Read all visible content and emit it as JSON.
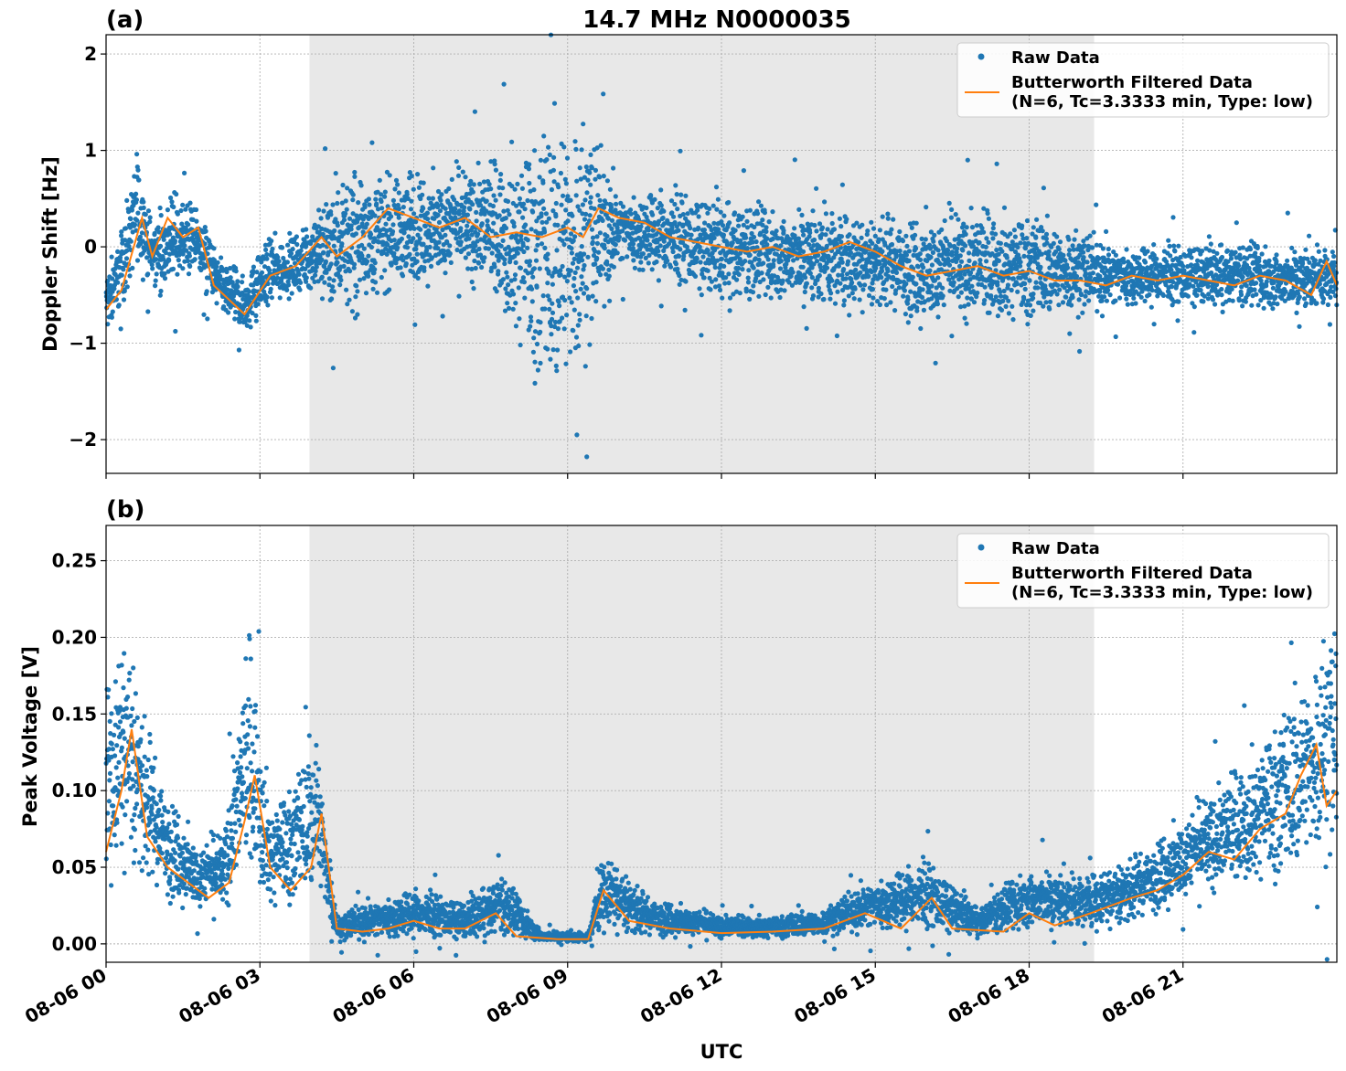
{
  "figure": {
    "title": "14.7 MHz N0000035",
    "xlabel": "UTC"
  },
  "chart_data": [
    {
      "type": "scatter",
      "panel_label": "(a)",
      "ylabel": "Doppler Shift [Hz]",
      "xlim": [
        "2021-08-06 00:00",
        "2021-08-07 00:00"
      ],
      "ylim": [
        -2.35,
        2.2
      ],
      "yticks": [
        2,
        1,
        0,
        -1,
        -2
      ],
      "ytick_labels": [
        "2",
        "1",
        "0",
        "−1",
        "−2"
      ],
      "grid": true,
      "shaded_region": [
        "08-06 03:58",
        "08-06 19:16"
      ],
      "legend": {
        "placement": "top-right",
        "entries": [
          {
            "name": "Raw Data",
            "kind": "marker",
            "color": "#1f77b4"
          },
          {
            "name": "Butterworth Filtered Data",
            "name_line2": "(N=6, Tc=3.3333 min, Type: low)",
            "kind": "line",
            "color": "#ff7f0e"
          }
        ]
      },
      "series": [
        {
          "name": "Raw Data",
          "color": "#1f77b4",
          "envelope": [
            {
              "t": 0.0,
              "lo": -1.0,
              "hi": -0.2
            },
            {
              "t": 0.4,
              "lo": -0.6,
              "hi": 0.5
            },
            {
              "t": 0.6,
              "lo": -0.3,
              "hi": 1.2
            },
            {
              "t": 0.9,
              "lo": -0.5,
              "hi": 0.3
            },
            {
              "t": 1.2,
              "lo": -0.6,
              "hi": 0.7
            },
            {
              "t": 1.8,
              "lo": -0.4,
              "hi": 0.5
            },
            {
              "t": 2.2,
              "lo": -0.8,
              "hi": 0.0
            },
            {
              "t": 2.7,
              "lo": -1.0,
              "hi": -0.2
            },
            {
              "t": 3.2,
              "lo": -0.7,
              "hi": 0.2
            },
            {
              "t": 3.9,
              "lo": -0.5,
              "hi": 0.2
            },
            {
              "t": 4.5,
              "lo": -0.9,
              "hi": 1.0
            },
            {
              "t": 5.5,
              "lo": -0.6,
              "hi": 0.9
            },
            {
              "t": 6.5,
              "lo": -0.5,
              "hi": 0.9
            },
            {
              "t": 7.5,
              "lo": -0.6,
              "hi": 1.0
            },
            {
              "t": 8.5,
              "lo": -1.8,
              "hi": 1.6
            },
            {
              "t": 9.0,
              "lo": -2.0,
              "hi": 2.0
            },
            {
              "t": 9.5,
              "lo": -1.2,
              "hi": 1.5
            },
            {
              "t": 10.0,
              "lo": -0.3,
              "hi": 0.7
            },
            {
              "t": 11.0,
              "lo": -0.5,
              "hi": 0.7
            },
            {
              "t": 12.0,
              "lo": -0.7,
              "hi": 0.6
            },
            {
              "t": 13.0,
              "lo": -0.7,
              "hi": 0.5
            },
            {
              "t": 14.0,
              "lo": -0.8,
              "hi": 0.6
            },
            {
              "t": 15.0,
              "lo": -0.7,
              "hi": 0.4
            },
            {
              "t": 16.0,
              "lo": -1.0,
              "hi": 0.5
            },
            {
              "t": 17.0,
              "lo": -0.9,
              "hi": 0.5
            },
            {
              "t": 18.0,
              "lo": -0.9,
              "hi": 0.5
            },
            {
              "t": 19.0,
              "lo": -0.8,
              "hi": 0.3
            },
            {
              "t": 20.0,
              "lo": -0.7,
              "hi": 0.1
            },
            {
              "t": 21.0,
              "lo": -0.7,
              "hi": 0.1
            },
            {
              "t": 22.0,
              "lo": -0.7,
              "hi": 0.1
            },
            {
              "t": 23.0,
              "lo": -0.8,
              "hi": 0.1
            },
            {
              "t": 24.0,
              "lo": -0.7,
              "hi": 0.1
            }
          ]
        },
        {
          "name": "Butterworth Filtered Data",
          "color": "#ff7f0e",
          "points": [
            {
              "t": 0.0,
              "v": -0.65
            },
            {
              "t": 0.3,
              "v": -0.45
            },
            {
              "t": 0.7,
              "v": 0.3
            },
            {
              "t": 0.9,
              "v": -0.1
            },
            {
              "t": 1.2,
              "v": 0.3
            },
            {
              "t": 1.5,
              "v": 0.1
            },
            {
              "t": 1.8,
              "v": 0.2
            },
            {
              "t": 2.1,
              "v": -0.4
            },
            {
              "t": 2.3,
              "v": -0.5
            },
            {
              "t": 2.7,
              "v": -0.7
            },
            {
              "t": 3.2,
              "v": -0.3
            },
            {
              "t": 3.7,
              "v": -0.2
            },
            {
              "t": 4.2,
              "v": 0.1
            },
            {
              "t": 4.5,
              "v": -0.1
            },
            {
              "t": 5.0,
              "v": 0.1
            },
            {
              "t": 5.5,
              "v": 0.4
            },
            {
              "t": 6.0,
              "v": 0.3
            },
            {
              "t": 6.5,
              "v": 0.2
            },
            {
              "t": 7.0,
              "v": 0.3
            },
            {
              "t": 7.5,
              "v": 0.1
            },
            {
              "t": 8.0,
              "v": 0.15
            },
            {
              "t": 8.5,
              "v": 0.1
            },
            {
              "t": 9.0,
              "v": 0.2
            },
            {
              "t": 9.3,
              "v": 0.1
            },
            {
              "t": 9.6,
              "v": 0.4
            },
            {
              "t": 10.0,
              "v": 0.3
            },
            {
              "t": 10.5,
              "v": 0.25
            },
            {
              "t": 11.0,
              "v": 0.1
            },
            {
              "t": 11.5,
              "v": 0.05
            },
            {
              "t": 12.0,
              "v": 0.0
            },
            {
              "t": 12.5,
              "v": -0.05
            },
            {
              "t": 13.0,
              "v": 0.0
            },
            {
              "t": 13.5,
              "v": -0.1
            },
            {
              "t": 14.0,
              "v": -0.05
            },
            {
              "t": 14.5,
              "v": 0.05
            },
            {
              "t": 15.0,
              "v": -0.05
            },
            {
              "t": 15.5,
              "v": -0.2
            },
            {
              "t": 16.0,
              "v": -0.3
            },
            {
              "t": 16.5,
              "v": -0.25
            },
            {
              "t": 17.0,
              "v": -0.2
            },
            {
              "t": 17.5,
              "v": -0.3
            },
            {
              "t": 18.0,
              "v": -0.25
            },
            {
              "t": 18.5,
              "v": -0.35
            },
            {
              "t": 19.0,
              "v": -0.35
            },
            {
              "t": 19.5,
              "v": -0.4
            },
            {
              "t": 20.0,
              "v": -0.3
            },
            {
              "t": 20.5,
              "v": -0.35
            },
            {
              "t": 21.0,
              "v": -0.3
            },
            {
              "t": 21.5,
              "v": -0.35
            },
            {
              "t": 22.0,
              "v": -0.4
            },
            {
              "t": 22.5,
              "v": -0.3
            },
            {
              "t": 23.0,
              "v": -0.35
            },
            {
              "t": 23.5,
              "v": -0.5
            },
            {
              "t": 23.8,
              "v": -0.15
            },
            {
              "t": 24.0,
              "v": -0.4
            }
          ]
        }
      ]
    },
    {
      "type": "scatter",
      "panel_label": "(b)",
      "ylabel": "Peak Voltage [V]",
      "xlim": [
        "2021-08-06 00:00",
        "2021-08-07 00:00"
      ],
      "ylim": [
        -0.012,
        0.273
      ],
      "yticks": [
        0.0,
        0.05,
        0.1,
        0.15,
        0.2,
        0.25
      ],
      "ytick_labels": [
        "0.00",
        "0.05",
        "0.10",
        "0.15",
        "0.20",
        "0.25"
      ],
      "xticks": [
        0,
        3,
        6,
        9,
        12,
        15,
        18,
        21
      ],
      "xtick_labels": [
        "08-06 00",
        "08-06 03",
        "08-06 06",
        "08-06 09",
        "08-06 12",
        "08-06 15",
        "08-06 18",
        "08-06 21"
      ],
      "grid": true,
      "shaded_region": [
        "08-06 03:58",
        "08-06 19:16"
      ],
      "legend": {
        "placement": "top-right",
        "entries": [
          {
            "name": "Raw Data",
            "kind": "marker",
            "color": "#1f77b4"
          },
          {
            "name": "Butterworth Filtered Data",
            "name_line2": "(N=6, Tc=3.3333 min, Type: low)",
            "kind": "line",
            "color": "#ff7f0e"
          }
        ]
      },
      "series": [
        {
          "name": "Raw Data",
          "color": "#1f77b4",
          "envelope": [
            {
              "t": 0.0,
              "lo": 0.03,
              "hi": 0.19
            },
            {
              "t": 0.4,
              "lo": 0.04,
              "hi": 0.23
            },
            {
              "t": 0.8,
              "lo": 0.03,
              "hi": 0.15
            },
            {
              "t": 1.2,
              "lo": 0.02,
              "hi": 0.11
            },
            {
              "t": 1.8,
              "lo": 0.015,
              "hi": 0.07
            },
            {
              "t": 2.3,
              "lo": 0.015,
              "hi": 0.08
            },
            {
              "t": 2.8,
              "lo": 0.03,
              "hi": 0.22
            },
            {
              "t": 3.2,
              "lo": 0.015,
              "hi": 0.1
            },
            {
              "t": 3.7,
              "lo": 0.02,
              "hi": 0.12
            },
            {
              "t": 4.1,
              "lo": 0.02,
              "hi": 0.16
            },
            {
              "t": 4.5,
              "lo": 0.0,
              "hi": 0.02
            },
            {
              "t": 5.0,
              "lo": 0.0,
              "hi": 0.03
            },
            {
              "t": 6.0,
              "lo": 0.0,
              "hi": 0.04
            },
            {
              "t": 7.0,
              "lo": 0.0,
              "hi": 0.03
            },
            {
              "t": 7.7,
              "lo": 0.0,
              "hi": 0.05
            },
            {
              "t": 8.5,
              "lo": 0.0,
              "hi": 0.01
            },
            {
              "t": 9.4,
              "lo": 0.0,
              "hi": 0.008
            },
            {
              "t": 9.7,
              "lo": 0.005,
              "hi": 0.07
            },
            {
              "t": 10.5,
              "lo": 0.002,
              "hi": 0.035
            },
            {
              "t": 12.0,
              "lo": 0.002,
              "hi": 0.02
            },
            {
              "t": 13.0,
              "lo": 0.002,
              "hi": 0.02
            },
            {
              "t": 14.0,
              "lo": 0.003,
              "hi": 0.025
            },
            {
              "t": 14.8,
              "lo": 0.005,
              "hi": 0.045
            },
            {
              "t": 16.0,
              "lo": 0.003,
              "hi": 0.06
            },
            {
              "t": 17.0,
              "lo": 0.003,
              "hi": 0.025
            },
            {
              "t": 18.0,
              "lo": 0.003,
              "hi": 0.055
            },
            {
              "t": 19.0,
              "lo": 0.005,
              "hi": 0.05
            },
            {
              "t": 20.0,
              "lo": 0.01,
              "hi": 0.06
            },
            {
              "t": 21.0,
              "lo": 0.02,
              "hi": 0.09
            },
            {
              "t": 22.0,
              "lo": 0.03,
              "hi": 0.12
            },
            {
              "t": 23.0,
              "lo": 0.03,
              "hi": 0.17
            },
            {
              "t": 24.0,
              "lo": 0.04,
              "hi": 0.24
            }
          ]
        },
        {
          "name": "Butterworth Filtered Data",
          "color": "#ff7f0e",
          "points": [
            {
              "t": 0.0,
              "v": 0.06
            },
            {
              "t": 0.3,
              "v": 0.1
            },
            {
              "t": 0.5,
              "v": 0.14
            },
            {
              "t": 0.8,
              "v": 0.07
            },
            {
              "t": 1.2,
              "v": 0.05
            },
            {
              "t": 1.6,
              "v": 0.04
            },
            {
              "t": 2.0,
              "v": 0.03
            },
            {
              "t": 2.4,
              "v": 0.04
            },
            {
              "t": 2.7,
              "v": 0.08
            },
            {
              "t": 2.9,
              "v": 0.11
            },
            {
              "t": 3.2,
              "v": 0.05
            },
            {
              "t": 3.6,
              "v": 0.035
            },
            {
              "t": 4.0,
              "v": 0.05
            },
            {
              "t": 4.2,
              "v": 0.085
            },
            {
              "t": 4.5,
              "v": 0.01
            },
            {
              "t": 5.0,
              "v": 0.008
            },
            {
              "t": 5.5,
              "v": 0.01
            },
            {
              "t": 6.0,
              "v": 0.015
            },
            {
              "t": 6.5,
              "v": 0.01
            },
            {
              "t": 7.0,
              "v": 0.01
            },
            {
              "t": 7.6,
              "v": 0.02
            },
            {
              "t": 8.0,
              "v": 0.005
            },
            {
              "t": 8.8,
              "v": 0.003
            },
            {
              "t": 9.4,
              "v": 0.003
            },
            {
              "t": 9.7,
              "v": 0.035
            },
            {
              "t": 10.2,
              "v": 0.015
            },
            {
              "t": 11.0,
              "v": 0.01
            },
            {
              "t": 12.0,
              "v": 0.007
            },
            {
              "t": 13.0,
              "v": 0.008
            },
            {
              "t": 14.0,
              "v": 0.01
            },
            {
              "t": 14.8,
              "v": 0.02
            },
            {
              "t": 15.5,
              "v": 0.01
            },
            {
              "t": 16.1,
              "v": 0.03
            },
            {
              "t": 16.5,
              "v": 0.01
            },
            {
              "t": 17.5,
              "v": 0.008
            },
            {
              "t": 18.0,
              "v": 0.02
            },
            {
              "t": 18.5,
              "v": 0.012
            },
            {
              "t": 19.2,
              "v": 0.02
            },
            {
              "t": 20.0,
              "v": 0.03
            },
            {
              "t": 20.5,
              "v": 0.035
            },
            {
              "t": 21.0,
              "v": 0.045
            },
            {
              "t": 21.5,
              "v": 0.06
            },
            {
              "t": 22.0,
              "v": 0.055
            },
            {
              "t": 22.5,
              "v": 0.075
            },
            {
              "t": 23.0,
              "v": 0.085
            },
            {
              "t": 23.3,
              "v": 0.11
            },
            {
              "t": 23.6,
              "v": 0.13
            },
            {
              "t": 23.8,
              "v": 0.09
            },
            {
              "t": 24.0,
              "v": 0.1
            }
          ]
        }
      ]
    }
  ]
}
